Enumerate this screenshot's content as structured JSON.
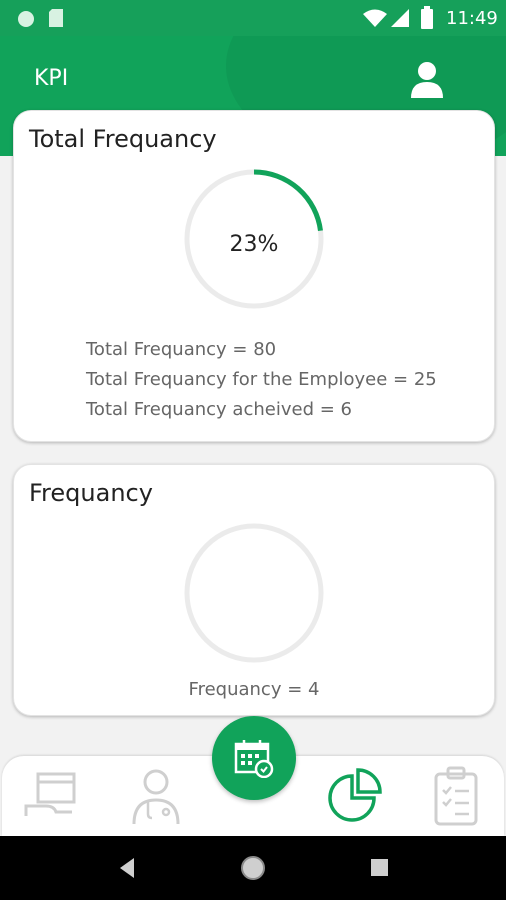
{
  "status_bar": {
    "time": "11:49"
  },
  "header": {
    "title": "KPI"
  },
  "total_card": {
    "title": "Total Frequancy",
    "progress_label": "23%",
    "progress_fraction": 0.23,
    "lines": [
      "Total Frequancy = 80",
      "Total Frequancy for the Employee = 25",
      "Total Frequancy acheived = 6"
    ]
  },
  "freq_card": {
    "title": "Frequancy",
    "progress_fraction": 0,
    "line": "Frequancy = 4"
  },
  "bottom_nav": {
    "items": [
      {
        "icon": "box-hand-icon"
      },
      {
        "icon": "doctor-icon"
      },
      {
        "icon": "calendar-icon"
      },
      {
        "icon": "pie-chart-icon"
      },
      {
        "icon": "clipboard-checklist-icon"
      }
    ]
  },
  "colors": {
    "accent": "#11a35a",
    "ring_track": "#ebebeb"
  }
}
